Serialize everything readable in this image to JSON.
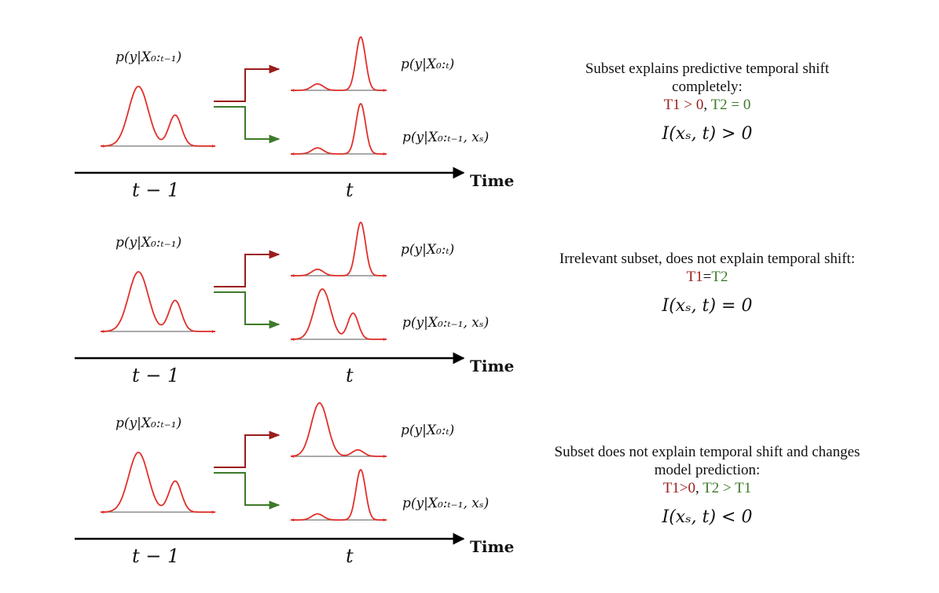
{
  "time_label": "Time",
  "tick_prev": "t − 1",
  "tick_curr": "t",
  "labels": {
    "prior": "p(y|X₀:ₜ₋₁)",
    "full": "p(y|X₀:ₜ)",
    "subset": "p(y|X₀:ₜ₋₁, xₛ)"
  },
  "colors": {
    "curve": "#e0302a",
    "arrow_top": "#9b1c1c",
    "arrow_bottom": "#3d7a2a",
    "baseline": "#777777"
  },
  "panels": [
    {
      "desc_text": "Subset explains predictive temporal shift completely:",
      "t1_text": "T1 > 0",
      "sep": ", ",
      "t2_text": "T2 = 0",
      "mi_text": "I(xₛ, t) > 0",
      "bottom_curve": "shifted"
    },
    {
      "desc_text": "Irrelevant subset, does not explain temporal shift:",
      "t1_text": "T1",
      "sep": "=",
      "t2_text": "T2",
      "mi_text": "I(xₛ, t) = 0",
      "bottom_curve": "prior"
    },
    {
      "desc_text": "Subset does not explain temporal shift and changes model prediction:",
      "t1_text": "T1>0",
      "sep": ", ",
      "t2_text": "T2 > T1",
      "mi_text": "I(xₛ, t) < 0",
      "bottom_curve": "shifted",
      "top_curve": "prior_tall"
    }
  ]
}
